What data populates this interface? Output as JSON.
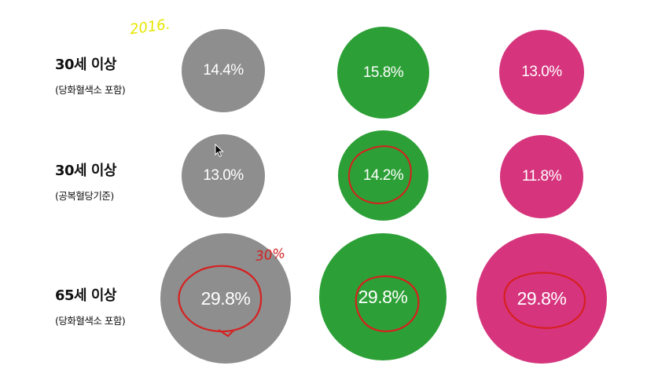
{
  "annotations": {
    "year": "2016.",
    "pct": "30%"
  },
  "colors": {
    "gray": "#8e8e8e",
    "green": "#2ca036",
    "pink": "#d6357e",
    "ink": "#d62020"
  },
  "rows": [
    {
      "label": "30세 이상",
      "sub": "(당화혈색소 포함)",
      "values": [
        "14.4%",
        "15.8%",
        "13.0%"
      ]
    },
    {
      "label": "30세 이상",
      "sub": "(공복혈당기준)",
      "values": [
        "13.0%",
        "14.2%",
        "11.8%"
      ]
    },
    {
      "label": "65세 이상",
      "sub": "(당화혈색소 포함)",
      "values": [
        "29.8%",
        "29.8%",
        "29.8%"
      ]
    }
  ]
}
